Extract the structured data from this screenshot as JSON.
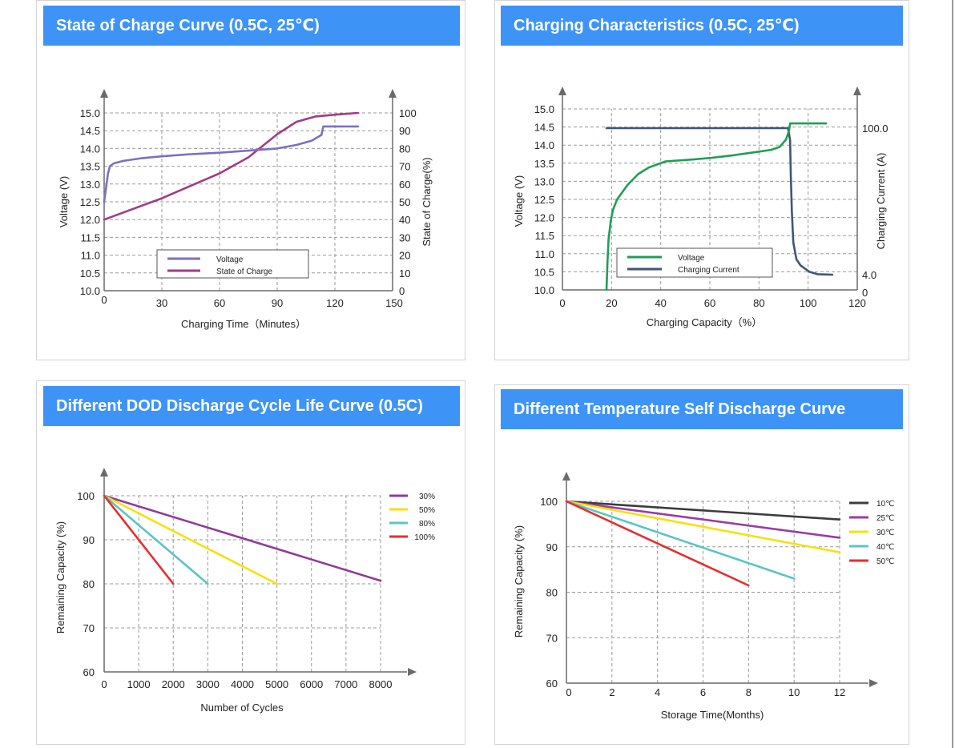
{
  "panels": [
    {
      "title": "State of Charge Curve (0.5C, 25℃)",
      "chart_data": {
        "type": "line",
        "xlabel": "Charging Time（Minutes）",
        "ylabel": "Voltage (V)",
        "y2label": "State of Charge(%)",
        "xlim": [
          0,
          150
        ],
        "xticks": [
          0,
          30,
          60,
          90,
          120,
          150
        ],
        "ylim": [
          10.0,
          15.0
        ],
        "yticks": [
          "10.0",
          "10.5",
          "11.0",
          "11.5",
          "12.0",
          "12.5",
          "13.0",
          "13.5",
          "14.0",
          "14.5",
          "15.0"
        ],
        "y2lim": [
          0,
          100
        ],
        "y2ticks": [
          0,
          10,
          20,
          30,
          40,
          50,
          60,
          70,
          80,
          90,
          100
        ],
        "grid": true,
        "legend_position": "bottom-center",
        "series": [
          {
            "name": "Voltage",
            "color": "#7b6fc6",
            "axis": "left",
            "points": [
              [
                0,
                12.5
              ],
              [
                1,
                12.9
              ],
              [
                2,
                13.3
              ],
              [
                3,
                13.5
              ],
              [
                5,
                13.58
              ],
              [
                10,
                13.65
              ],
              [
                20,
                13.73
              ],
              [
                30,
                13.78
              ],
              [
                45,
                13.84
              ],
              [
                60,
                13.88
              ],
              [
                75,
                13.94
              ],
              [
                90,
                14.0
              ],
              [
                100,
                14.1
              ],
              [
                108,
                14.22
              ],
              [
                113,
                14.38
              ],
              [
                114,
                14.62
              ],
              [
                132,
                14.62
              ]
            ]
          },
          {
            "name": "State of Charge",
            "color": "#a53a86",
            "axis": "right",
            "points": [
              [
                0,
                40
              ],
              [
                30,
                52
              ],
              [
                60,
                66
              ],
              [
                75,
                75
              ],
              [
                90,
                88
              ],
              [
                100,
                95
              ],
              [
                110,
                98
              ],
              [
                120,
                99
              ],
              [
                132,
                100
              ]
            ]
          }
        ]
      }
    },
    {
      "title": "Charging Characteristics (0.5C, 25℃)",
      "chart_data": {
        "type": "line",
        "xlabel": "Charging Capacity（%）",
        "ylabel": "Voltage (V)",
        "y2label": "Charging Current (A)",
        "xlim": [
          0,
          120
        ],
        "xticks": [
          0,
          20,
          40,
          60,
          80,
          100,
          120
        ],
        "ylim": [
          10.0,
          15.0
        ],
        "yticks": [
          "10.0",
          "10.5",
          "11.0",
          "11.5",
          "12.0",
          "12.5",
          "13.0",
          "13.5",
          "14.0",
          "14.5",
          "15.0"
        ],
        "y2ticks": [
          "100.0",
          "4.0",
          "0"
        ],
        "grid": true,
        "legend_position": "bottom-center",
        "series": [
          {
            "name": "Voltage",
            "color": "#1f9e55",
            "axis": "left",
            "points": [
              [
                0,
                10.0
              ],
              [
                0.5,
                10.8
              ],
              [
                1,
                11.4
              ],
              [
                2,
                11.9
              ],
              [
                3,
                12.2
              ],
              [
                5,
                12.5
              ],
              [
                10,
                12.9
              ],
              [
                15,
                13.2
              ],
              [
                20,
                13.38
              ],
              [
                28,
                13.55
              ],
              [
                40,
                13.6
              ],
              [
                50,
                13.65
              ],
              [
                60,
                13.72
              ],
              [
                70,
                13.8
              ],
              [
                78,
                13.87
              ],
              [
                82,
                13.95
              ],
              [
                85,
                14.15
              ],
              [
                86.5,
                14.4
              ],
              [
                87,
                14.6
              ],
              [
                104,
                14.6
              ]
            ]
          },
          {
            "name": "Charging Current",
            "color": "#3f5678",
            "axis": "right",
            "points": [
              [
                0,
                100.0
              ],
              [
                86,
                100.0
              ],
              [
                87,
                92
              ],
              [
                87.3,
                70
              ],
              [
                87.8,
                45
              ],
              [
                88.5,
                25
              ],
              [
                90,
                14
              ],
              [
                92,
                10
              ],
              [
                96,
                6
              ],
              [
                100,
                4.3
              ],
              [
                107,
                4.0
              ]
            ]
          }
        ]
      }
    },
    {
      "title": "Different DOD Discharge Cycle Life Curve (0.5C)",
      "chart_data": {
        "type": "line",
        "xlabel": "Number of Cycles",
        "ylabel": "Remaining Capacity (%)",
        "xlim": [
          0,
          8000
        ],
        "xticks": [
          0,
          1000,
          2000,
          3000,
          4000,
          5000,
          6000,
          7000,
          8000
        ],
        "ylim": [
          60,
          100
        ],
        "yticks": [
          60,
          70,
          80,
          90,
          100
        ],
        "grid": true,
        "legend_position": "top-right",
        "series": [
          {
            "name": "30%",
            "color": "#8f3c99",
            "points": [
              [
                0,
                100
              ],
              [
                8000,
                80.7
              ]
            ]
          },
          {
            "name": "50%",
            "color": "#f5e10f",
            "points": [
              [
                0,
                100
              ],
              [
                5000,
                80
              ]
            ]
          },
          {
            "name": "80%",
            "color": "#5cc4c4",
            "points": [
              [
                0,
                100
              ],
              [
                3000,
                80
              ]
            ]
          },
          {
            "name": "100%",
            "color": "#e62e2e",
            "points": [
              [
                0,
                100
              ],
              [
                2000,
                80
              ]
            ]
          }
        ]
      }
    },
    {
      "title": "Different Temperature Self Discharge Curve",
      "chart_data": {
        "type": "line",
        "xlabel": "Storage Time(Months)",
        "ylabel": "Remaining Capacity (%)",
        "xlim": [
          0,
          12
        ],
        "xticks": [
          0,
          2,
          4,
          6,
          8,
          10,
          12
        ],
        "ylim": [
          60,
          100
        ],
        "yticks": [
          60,
          70,
          80,
          90,
          100
        ],
        "grid": true,
        "legend_position": "top-right",
        "series": [
          {
            "name": "10℃",
            "color": "#3c3c3c",
            "points": [
              [
                0,
                100
              ],
              [
                12,
                96
              ]
            ]
          },
          {
            "name": "25℃",
            "color": "#9a3ca3",
            "points": [
              [
                0,
                100
              ],
              [
                12,
                92
              ]
            ]
          },
          {
            "name": "30℃",
            "color": "#f5e10f",
            "points": [
              [
                0,
                100
              ],
              [
                12,
                88.8
              ]
            ]
          },
          {
            "name": "40℃",
            "color": "#5cc4c4",
            "points": [
              [
                0,
                100
              ],
              [
                10,
                83
              ]
            ]
          },
          {
            "name": "50℃",
            "color": "#e62e2e",
            "points": [
              [
                0,
                100
              ],
              [
                8,
                81.5
              ]
            ]
          }
        ]
      }
    }
  ]
}
